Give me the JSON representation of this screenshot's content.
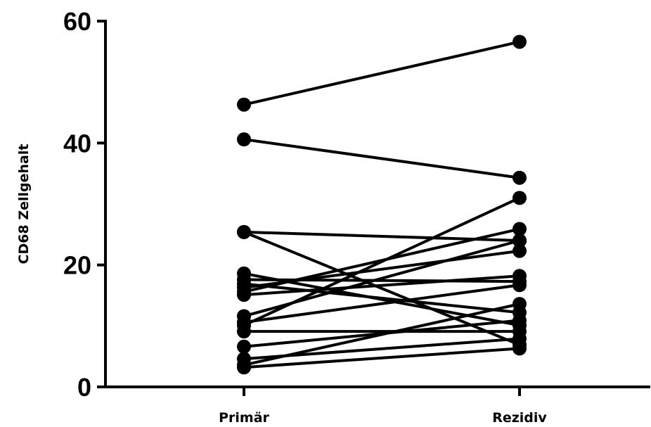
{
  "chart_data": {
    "type": "line",
    "title": "",
    "xlabel": "",
    "ylabel": "CD68 Zellgehalt",
    "categories": [
      "Primär",
      "Rezidiv"
    ],
    "ylim": [
      0,
      60
    ],
    "yticks": [
      0,
      20,
      40,
      60
    ],
    "grid": false,
    "legend": "none",
    "line_color": "#000000",
    "series": [
      {
        "values": [
          46.3,
          56.6
        ]
      },
      {
        "values": [
          40.6,
          34.3
        ]
      },
      {
        "values": [
          25.4,
          24.0
        ]
      },
      {
        "values": [
          25.4,
          6.9
        ]
      },
      {
        "values": [
          18.6,
          10.1
        ]
      },
      {
        "values": [
          17.6,
          17.3
        ]
      },
      {
        "values": [
          16.9,
          12.2
        ]
      },
      {
        "values": [
          16.3,
          22.3
        ]
      },
      {
        "values": [
          15.6,
          25.9
        ]
      },
      {
        "values": [
          15.1,
          18.2
        ]
      },
      {
        "values": [
          11.6,
          24.0
        ]
      },
      {
        "values": [
          10.6,
          16.7
        ]
      },
      {
        "values": [
          10.1,
          31.0
        ]
      },
      {
        "values": [
          9.1,
          9.1
        ]
      },
      {
        "values": [
          6.6,
          10.9
        ]
      },
      {
        "values": [
          4.6,
          7.9
        ]
      },
      {
        "values": [
          3.6,
          13.6
        ]
      },
      {
        "values": [
          3.2,
          6.3
        ]
      }
    ]
  }
}
